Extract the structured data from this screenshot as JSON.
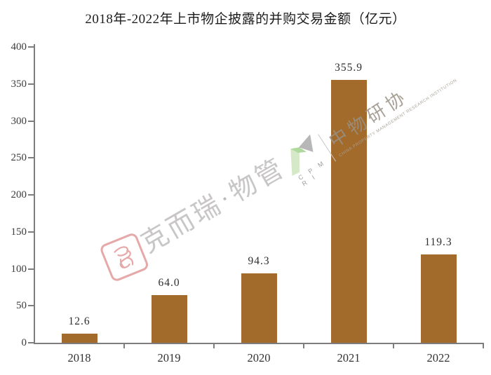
{
  "page": {
    "background": "#ffffff"
  },
  "chart_data": {
    "type": "bar",
    "title": "2018年-2022年上市物企披露的并购交易金额（亿元）",
    "categories": [
      "2018",
      "2019",
      "2020",
      "2021",
      "2022"
    ],
    "values": [
      12.6,
      64.0,
      94.3,
      355.9,
      119.3
    ],
    "value_labels": [
      "12.6",
      "64.0",
      "94.3",
      "355.9",
      "119.3"
    ],
    "xlabel": "",
    "ylabel": "",
    "ylim": [
      0,
      400
    ],
    "yticks": [
      0,
      50,
      100,
      150,
      200,
      250,
      300,
      350,
      400
    ],
    "grid": false,
    "legend": "none",
    "bar_color": "#A26B2B",
    "axis_color": "#7D7D7D",
    "label_color": "#333333",
    "title_color": "#1C1C1C"
  },
  "watermarks": {
    "cric": {
      "full_text": "克而瑞·物管",
      "chars": [
        "克",
        "而",
        "瑞",
        "物",
        "管"
      ],
      "separator": "▪",
      "seal_color": "#DE8C8C",
      "text_color": "#BEBCBC"
    },
    "cpmri": {
      "cn": "中物研协",
      "cn_chars": [
        "中",
        "物",
        "研",
        "协"
      ],
      "acronym": "C P M R I",
      "en": "CHINA PROPERTY MANAGEMENT RESEARCH INSTITUTION",
      "green_light": "#D5E9C9",
      "green_mid": "#AFD99E",
      "gray": "#B7B7B7",
      "text_color": "#989185"
    }
  }
}
